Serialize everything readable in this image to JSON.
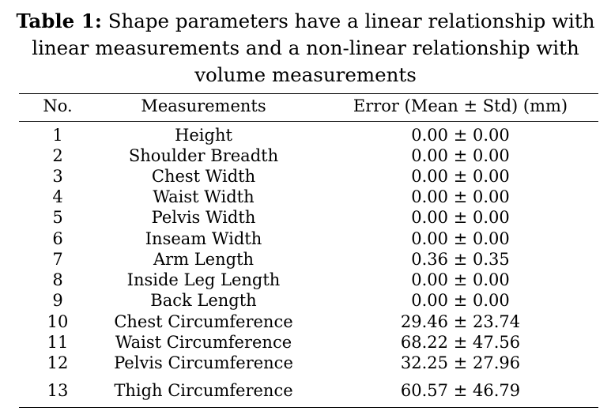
{
  "caption": {
    "label": "Table 1:",
    "line1": "Shape parameters have a linear relationship with",
    "line2": "linear measurements and a non-linear relationship with",
    "line3": "volume measurements"
  },
  "table": {
    "headers": [
      "No.",
      "Measurements",
      "Error (Mean ± Std) (mm)"
    ],
    "rows": [
      {
        "no": "1",
        "measurement": "Height",
        "error": "0.00 ± 0.00"
      },
      {
        "no": "2",
        "measurement": "Shoulder Breadth",
        "error": "0.00 ± 0.00"
      },
      {
        "no": "3",
        "measurement": "Chest Width",
        "error": "0.00 ± 0.00"
      },
      {
        "no": "4",
        "measurement": "Waist Width",
        "error": "0.00 ± 0.00"
      },
      {
        "no": "5",
        "measurement": "Pelvis Width",
        "error": "0.00 ± 0.00"
      },
      {
        "no": "6",
        "measurement": "Inseam Width",
        "error": "0.00 ± 0.00"
      },
      {
        "no": "7",
        "measurement": "Arm Length",
        "error": "0.36 ± 0.35"
      },
      {
        "no": "8",
        "measurement": "Inside Leg Length",
        "error": "0.00 ± 0.00"
      },
      {
        "no": "9",
        "measurement": "Back Length",
        "error": "0.00 ± 0.00"
      },
      {
        "no": "10",
        "measurement": "Chest Circumference",
        "error": "29.46 ± 23.74"
      },
      {
        "no": "11",
        "measurement": "Waist Circumference",
        "error": "68.22 ± 47.56"
      },
      {
        "no": "12",
        "measurement": "Pelvis Circumference",
        "error": "32.25 ± 27.96"
      },
      {
        "no": "13",
        "measurement": "Thigh Circumference",
        "error": "60.57 ± 46.79"
      }
    ]
  }
}
